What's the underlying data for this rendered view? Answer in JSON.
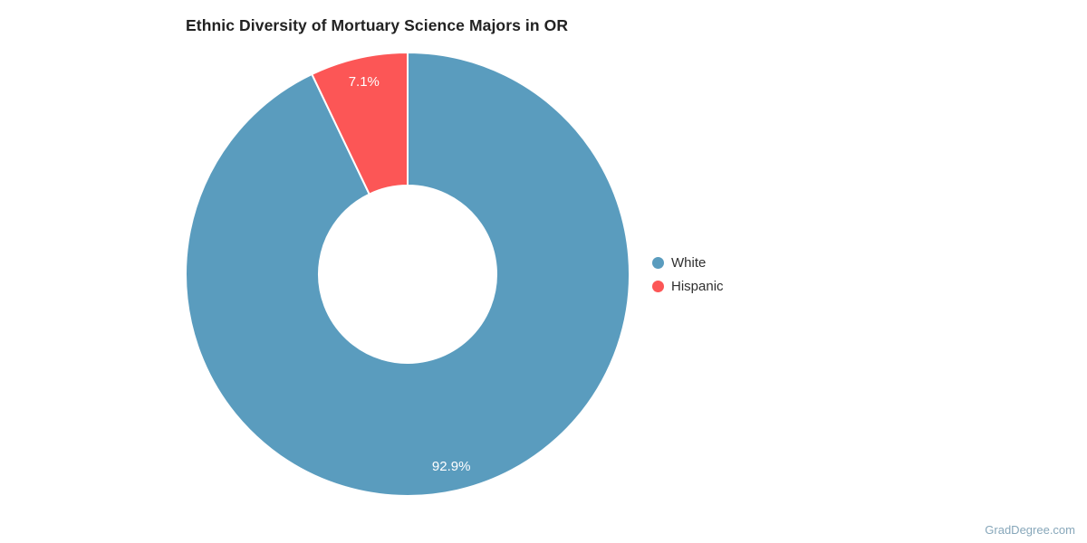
{
  "page": {
    "background": "#ffffff",
    "watermark": "GradDegree.com",
    "watermark_color": "#87a7ba"
  },
  "chart_data": {
    "type": "pie",
    "subtype": "donut",
    "title": "Ethnic Diversity of Mortuary Science Majors in OR",
    "title_color": "#222222",
    "categories": [
      "White",
      "Hispanic"
    ],
    "values": [
      92.9,
      7.1
    ],
    "slice_labels": [
      "92.9%",
      "7.1%"
    ],
    "colors": [
      "#5a9cbe",
      "#fc5656"
    ],
    "units": "percent",
    "start_angle_deg": 0,
    "direction": "clockwise",
    "inner_radius_ratio": 0.4,
    "slice_label_color": "#ffffff",
    "slice_border_color": "#ffffff",
    "legend_position": "right",
    "grid": false
  },
  "legend": {
    "items": [
      {
        "label": "White",
        "color": "#5a9cbe"
      },
      {
        "label": "Hispanic",
        "color": "#fc5656"
      }
    ]
  }
}
